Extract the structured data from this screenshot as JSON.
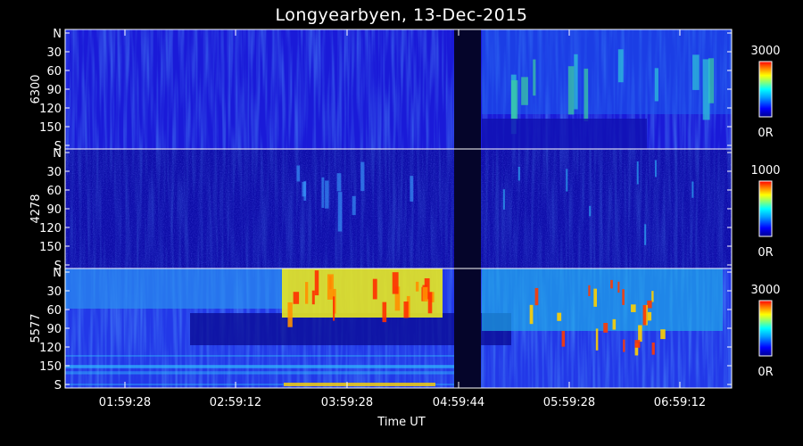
{
  "chart_data": {
    "type": "heatmap",
    "title": "Longyearbyen, 13-Dec-2015",
    "xlabel": "Time UT",
    "x_ticks": [
      "01:59:28",
      "02:59:12",
      "03:59:28",
      "04:59:44",
      "05:59:28",
      "06:59:12"
    ],
    "y_ticks": [
      "N",
      "30",
      "60",
      "90",
      "120",
      "150",
      "S"
    ],
    "panels": [
      {
        "ylabel": "6300",
        "colorbar": {
          "max_label": "3000",
          "min_label": "0R"
        }
      },
      {
        "ylabel": "4278",
        "colorbar": {
          "max_label": "1000",
          "min_label": "0R"
        }
      },
      {
        "ylabel": "5577",
        "colorbar": {
          "max_label": "3000",
          "min_label": "0R"
        }
      }
    ],
    "colormap": [
      "#00008f",
      "#0000ff",
      "#00a0ff",
      "#00ffff",
      "#80ff80",
      "#ffff00",
      "#ff8000",
      "#ff0000",
      "#800000"
    ]
  }
}
